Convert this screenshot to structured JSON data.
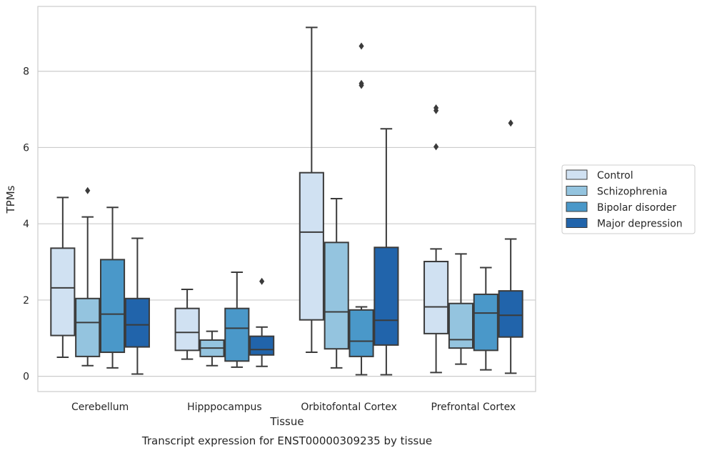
{
  "chart_data": {
    "type": "box",
    "caption": "Transcript expression for ENST00000309235 by tissue",
    "xlabel": "Tissue",
    "ylabel": "TPMs",
    "ylim": [
      -0.4,
      9.7
    ],
    "yticks": [
      0,
      2,
      4,
      6,
      8
    ],
    "grid": true,
    "legend_placement": "right",
    "categories": [
      "Cerebellum",
      "Hipppocampus",
      "Orbitofontal Cortex",
      "Prefrontal Cortex"
    ],
    "series": [
      {
        "name": "Control",
        "color": "#d0e1f2",
        "boxes": [
          {
            "whislo": 0.5,
            "q1": 1.07,
            "med": 2.32,
            "q3": 3.36,
            "whishi": 4.69,
            "fliers": []
          },
          {
            "whislo": 0.45,
            "q1": 0.68,
            "med": 1.15,
            "q3": 1.78,
            "whishi": 2.28,
            "fliers": []
          },
          {
            "whislo": 0.63,
            "q1": 1.48,
            "med": 3.78,
            "q3": 5.34,
            "whishi": 9.15,
            "fliers": []
          },
          {
            "whislo": 0.1,
            "q1": 1.12,
            "med": 1.82,
            "q3": 3.01,
            "whishi": 3.34,
            "fliers": [
              6.02,
              6.97,
              7.04
            ]
          }
        ]
      },
      {
        "name": "Schizophrenia",
        "color": "#94c4df",
        "boxes": [
          {
            "whislo": 0.28,
            "q1": 0.52,
            "med": 1.41,
            "q3": 2.04,
            "whishi": 4.18,
            "fliers": [
              4.87
            ]
          },
          {
            "whislo": 0.28,
            "q1": 0.52,
            "med": 0.74,
            "q3": 0.95,
            "whishi": 1.18,
            "fliers": []
          },
          {
            "whislo": 0.22,
            "q1": 0.72,
            "med": 1.69,
            "q3": 3.51,
            "whishi": 4.66,
            "fliers": []
          },
          {
            "whislo": 0.32,
            "q1": 0.74,
            "med": 0.96,
            "q3": 1.91,
            "whishi": 3.21,
            "fliers": []
          }
        ]
      },
      {
        "name": "Bipolar disorder",
        "color": "#4a98c9",
        "boxes": [
          {
            "whislo": 0.22,
            "q1": 0.63,
            "med": 1.63,
            "q3": 3.06,
            "whishi": 4.43,
            "fliers": []
          },
          {
            "whislo": 0.24,
            "q1": 0.4,
            "med": 1.26,
            "q3": 1.78,
            "whishi": 2.73,
            "fliers": []
          },
          {
            "whislo": 0.04,
            "q1": 0.52,
            "med": 0.92,
            "q3": 1.74,
            "whishi": 1.82,
            "fliers": [
              7.63,
              7.68,
              8.66
            ]
          },
          {
            "whislo": 0.17,
            "q1": 0.68,
            "med": 1.66,
            "q3": 2.15,
            "whishi": 2.85,
            "fliers": []
          }
        ]
      },
      {
        "name": "Major depression",
        "color": "#2164ab",
        "boxes": [
          {
            "whislo": 0.06,
            "q1": 0.77,
            "med": 1.35,
            "q3": 2.04,
            "whishi": 3.62,
            "fliers": []
          },
          {
            "whislo": 0.26,
            "q1": 0.56,
            "med": 0.7,
            "q3": 1.05,
            "whishi": 1.29,
            "fliers": [
              2.49
            ]
          },
          {
            "whislo": 0.04,
            "q1": 0.82,
            "med": 1.47,
            "q3": 3.38,
            "whishi": 6.49,
            "fliers": []
          },
          {
            "whislo": 0.08,
            "q1": 1.03,
            "med": 1.6,
            "q3": 2.24,
            "whishi": 3.6,
            "fliers": [
              6.64
            ]
          }
        ]
      }
    ]
  }
}
